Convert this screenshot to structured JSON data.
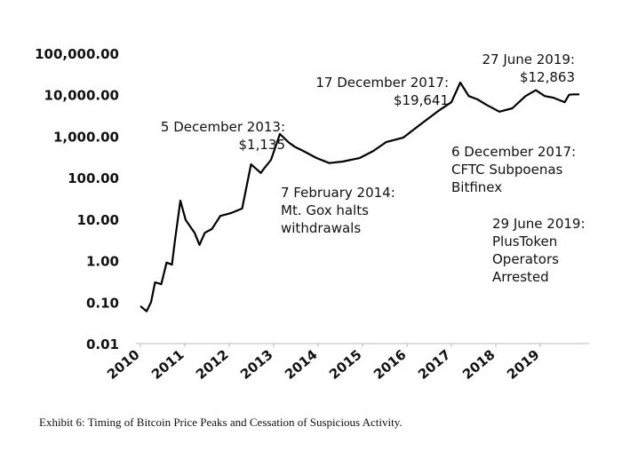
{
  "chart_data": {
    "type": "line",
    "log_y": true,
    "grid": false,
    "caption": "Exhibit 6:  Timing of Bitcoin Price Peaks and Cessation of Suspicious Activity.",
    "xlim": [
      2009.9,
      2020.1
    ],
    "xticks": [
      2010,
      2011,
      2012,
      2013,
      2014,
      2015,
      2016,
      2017,
      2018,
      2019
    ],
    "ylim": [
      0.01,
      100000
    ],
    "yticks": [
      {
        "value": 0.01,
        "label": "0.01"
      },
      {
        "value": 0.1,
        "label": "0.10"
      },
      {
        "value": 1,
        "label": "1.00"
      },
      {
        "value": 10,
        "label": "10.00"
      },
      {
        "value": 100,
        "label": "100.00"
      },
      {
        "value": 1000,
        "label": "1,000.00"
      },
      {
        "value": 10000,
        "label": "10,000.00"
      },
      {
        "value": 100000,
        "label": "100,000.00"
      }
    ],
    "series": [
      {
        "color": "#000000",
        "x": [
          2010.0,
          2010.14,
          2010.24,
          2010.33,
          2010.47,
          2010.59,
          2010.71,
          2010.78,
          2010.9,
          2011.02,
          2011.22,
          2011.33,
          2011.45,
          2011.61,
          2011.8,
          2012.04,
          2012.29,
          2012.49,
          2012.71,
          2012.78,
          2012.94,
          2013.14,
          2013.33,
          2013.47,
          2013.67,
          2013.96,
          2014.25,
          2014.55,
          2014.94,
          2015.24,
          2015.53,
          2015.92,
          2016.31,
          2016.71,
          2017.0,
          2017.2,
          2017.39,
          2017.59,
          2017.78,
          2018.08,
          2018.37,
          2018.67,
          2018.9,
          2019.1,
          2019.29,
          2019.55,
          2019.65,
          2019.75,
          2019.88
        ],
        "values": [
          0.08,
          0.06,
          0.1,
          0.3,
          0.27,
          0.9,
          0.8,
          3.2,
          28,
          9.5,
          4.7,
          2.4,
          4.7,
          5.8,
          12,
          14,
          18,
          210,
          130,
          165,
          270,
          1135,
          720,
          560,
          440,
          300,
          225,
          245,
          300,
          440,
          720,
          930,
          1950,
          4100,
          6600,
          19641,
          9300,
          7700,
          5800,
          3900,
          4700,
          9300,
          12863,
          9300,
          8500,
          6600,
          10000,
          10200,
          10200
        ]
      }
    ],
    "annotations": [
      {
        "lines": [
          "5 December 2013:",
          "$1,135"
        ]
      },
      {
        "lines": [
          "7 February 2014:",
          "Mt. Gox halts",
          "withdrawals"
        ]
      },
      {
        "lines": [
          "17 December 2017:",
          "$19,641"
        ]
      },
      {
        "lines": [
          "27 June 2019:",
          "$12,863"
        ]
      },
      {
        "lines": [
          "6 December 2017:",
          "CFTC Subpoenas",
          "Bitfinex"
        ]
      },
      {
        "lines": [
          "29 June 2019:",
          "PlusToken",
          "Operators",
          "Arrested"
        ]
      }
    ]
  }
}
